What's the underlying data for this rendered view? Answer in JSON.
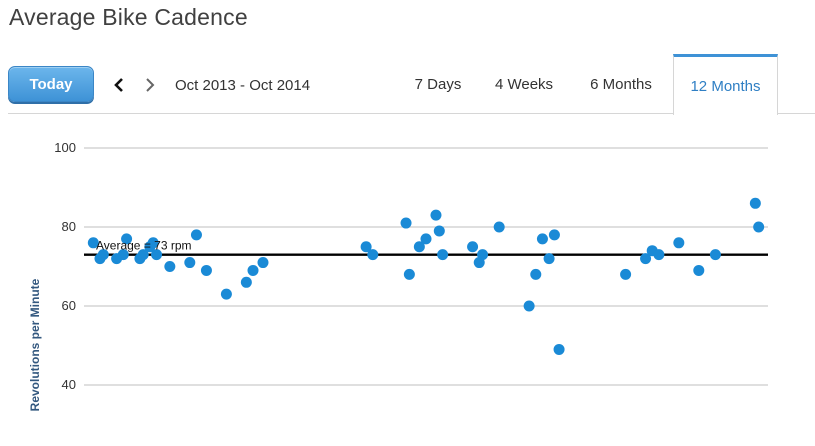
{
  "page": {
    "title": "Average Bike Cadence"
  },
  "toolbar": {
    "today_label": "Today",
    "date_range": "Oct 2013 - Oct 2014",
    "prev_icon": "chevron-left-icon",
    "next_icon": "chevron-right-icon"
  },
  "tabs": [
    {
      "label": "7 Days",
      "active": false
    },
    {
      "label": "4 Weeks",
      "active": false
    },
    {
      "label": "6 Months",
      "active": false
    },
    {
      "label": "12 Months",
      "active": true
    }
  ],
  "colors": {
    "accent": "#3e92d6",
    "point": "#1a8ad6",
    "average_line": "#000000",
    "grid": "#bfbfbf",
    "axis_label": "#33587f"
  },
  "chart_data": {
    "type": "scatter",
    "title": "",
    "xlabel": "",
    "ylabel": "Revolutions per Minute",
    "ylim": [
      40,
      100
    ],
    "y_ticks": [
      "100",
      "80",
      "60",
      "40"
    ],
    "grid": true,
    "x_range_label": "Oct 2013 - Oct 2014",
    "series": [
      {
        "points": [
          [
            0.5,
            76
          ],
          [
            1.5,
            72
          ],
          [
            2,
            73
          ],
          [
            4,
            72
          ],
          [
            5,
            73
          ],
          [
            5.5,
            77
          ],
          [
            7.5,
            72
          ],
          [
            8,
            73
          ],
          [
            9,
            75
          ],
          [
            9.5,
            76
          ],
          [
            10,
            73
          ],
          [
            12,
            70
          ],
          [
            15,
            71
          ],
          [
            16,
            78
          ],
          [
            17.5,
            69
          ],
          [
            20.5,
            63
          ],
          [
            23.5,
            66
          ],
          [
            24.5,
            69
          ],
          [
            26,
            71
          ],
          [
            41.5,
            75
          ],
          [
            42.5,
            73
          ],
          [
            47.5,
            81
          ],
          [
            48,
            68
          ],
          [
            49.5,
            75
          ],
          [
            50.5,
            77
          ],
          [
            52,
            83
          ],
          [
            52.5,
            79
          ],
          [
            53,
            73
          ],
          [
            57.5,
            75
          ],
          [
            58.5,
            71
          ],
          [
            59,
            73
          ],
          [
            61.5,
            80
          ],
          [
            66,
            60
          ],
          [
            67,
            68
          ],
          [
            68,
            77
          ],
          [
            69,
            72
          ],
          [
            69.8,
            78
          ],
          [
            70.5,
            49
          ],
          [
            80.5,
            68
          ],
          [
            83.5,
            72
          ],
          [
            84.5,
            74
          ],
          [
            85.5,
            73
          ],
          [
            88.5,
            76
          ],
          [
            91.5,
            69
          ],
          [
            94,
            73
          ],
          [
            100,
            86
          ],
          [
            100.5,
            80
          ]
        ]
      }
    ],
    "average": {
      "value": 73,
      "label": "Average = 73 rpm"
    }
  }
}
